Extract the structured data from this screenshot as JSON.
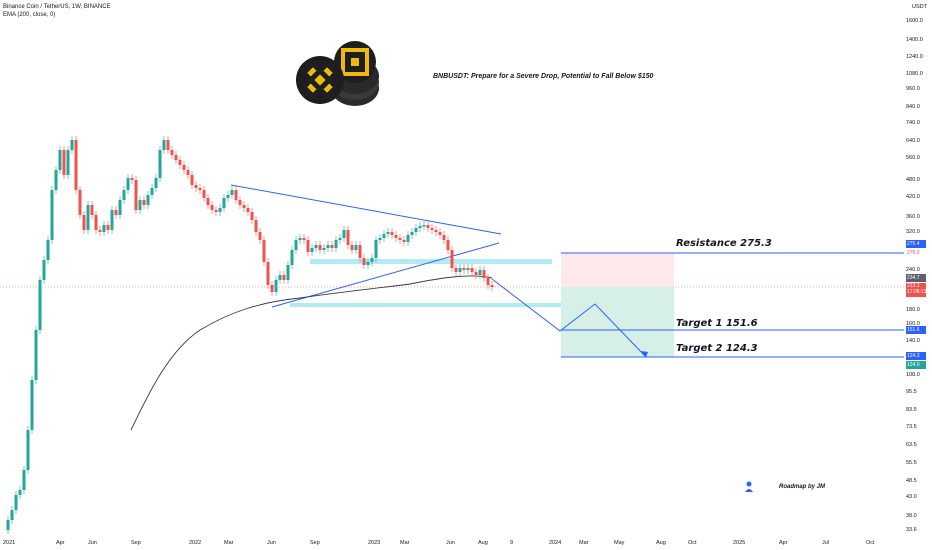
{
  "header": {
    "symbol_line": "Binance Coin / TetherUS, 1W, BINANCE",
    "indicator_line": "EMA (200, close, 0)"
  },
  "chart_title": "BNBUSDT: Prepare for a Severe Drop, Potential to Fall Below $150",
  "labels": {
    "resistance": "Resistance 275.3",
    "target1": "Target 1  151.6",
    "target2": "Target 2  124.3"
  },
  "footer": "Roadmap by JM",
  "y_axis": {
    "unit": "USDT",
    "ticks": [
      "1600.0",
      "1400.0",
      "1240.0",
      "1080.0",
      "960.0",
      "840.0",
      "740.0",
      "640.0",
      "560.0",
      "480.0",
      "420.0",
      "360.0",
      "320.0",
      "275.3",
      "240.0",
      "180.0",
      "160.0",
      "140.0",
      "108.0",
      "95.5",
      "83.5",
      "73.5",
      "63.5",
      "55.5",
      "48.5",
      "43.0",
      "38.0",
      "33.6"
    ]
  },
  "price_tags": {
    "resistance_top": "275.4",
    "resistance_bottom": "275.3",
    "ema": "234.7",
    "current": "213.1",
    "countdown": "17:06:13",
    "target1": "151.6",
    "target2_top": "124.3",
    "target2_bottom": "124.0"
  },
  "x_axis": {
    "ticks": [
      {
        "label": "2021",
        "bold": false
      },
      {
        "label": "Apr",
        "bold": false
      },
      {
        "label": "Jun",
        "bold": false
      },
      {
        "label": "Sep",
        "bold": false
      },
      {
        "label": "2022",
        "bold": false
      },
      {
        "label": "Mar",
        "bold": false
      },
      {
        "label": "Jun",
        "bold": false
      },
      {
        "label": "Sep",
        "bold": false
      },
      {
        "label": "2023",
        "bold": false
      },
      {
        "label": "Mar",
        "bold": false
      },
      {
        "label": "Jun",
        "bold": false
      },
      {
        "label": "Aug",
        "bold": false
      },
      {
        "label": "9",
        "bold": false
      },
      {
        "label": "2024",
        "bold": false
      },
      {
        "label": "Mar",
        "bold": false
      },
      {
        "label": "May",
        "bold": false
      },
      {
        "label": "Aug",
        "bold": false
      },
      {
        "label": "Oct",
        "bold": false
      },
      {
        "label": "2025",
        "bold": false
      },
      {
        "label": "Apr",
        "bold": false
      },
      {
        "label": "Jul",
        "bold": false
      },
      {
        "label": "Oct",
        "bold": false
      }
    ]
  },
  "colors": {
    "up": "#26a69a",
    "down": "#ef5350",
    "trendline": "#2962ff",
    "ema": "#363a45",
    "zone": "#b2ebf2",
    "stop": "#fde8ea",
    "profit": "#d6efe7",
    "logo": "#f0b90b"
  }
}
